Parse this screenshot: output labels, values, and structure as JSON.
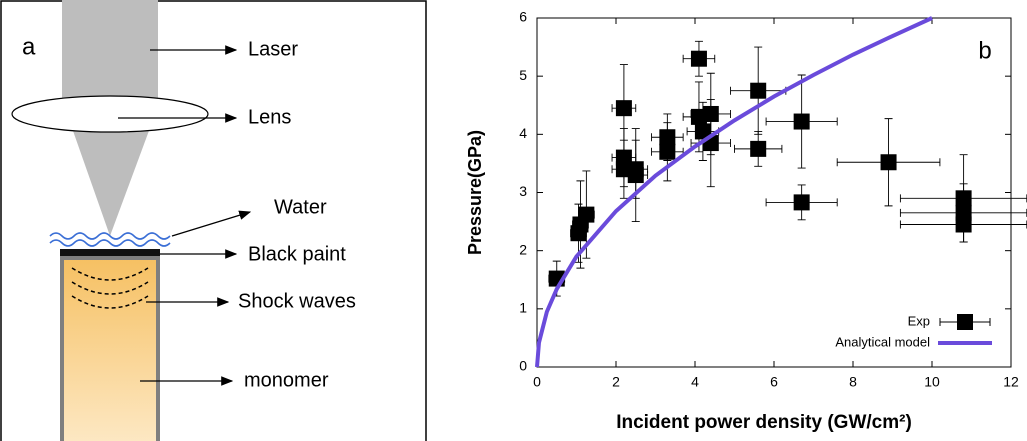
{
  "diagram": {
    "panel": "a",
    "labels": [
      "Laser",
      "Lens",
      "Water",
      "Black paint",
      "Shock waves",
      "monomer"
    ]
  },
  "chart_data": {
    "type": "scatter",
    "panel": "b",
    "xlabel": "Incident power density (GW/cm²)",
    "ylabel": "Pressure(GPa)",
    "xlim": [
      0,
      12
    ],
    "xticks": [
      0,
      2,
      4,
      6,
      8,
      10,
      12
    ],
    "ylim": [
      0,
      6
    ],
    "yticks": [
      0,
      1,
      2,
      3,
      4,
      5,
      6
    ],
    "legend": "lower right",
    "series": [
      {
        "name": "Exp",
        "color": "#000000",
        "x": [
          0.5,
          1.05,
          1.1,
          1.25,
          2.2,
          2.2,
          2.2,
          2.5,
          2.5,
          3.3,
          3.3,
          4.1,
          4.1,
          4.2,
          4.4,
          4.4,
          5.6,
          5.6,
          6.7,
          6.7,
          8.9,
          10.8,
          10.8,
          10.8
        ],
        "values": [
          1.52,
          2.3,
          2.45,
          2.62,
          4.45,
          3.6,
          3.4,
          3.3,
          3.4,
          3.95,
          3.7,
          5.3,
          4.3,
          4.05,
          4.35,
          3.85,
          4.75,
          3.75,
          4.22,
          2.83,
          3.52,
          2.9,
          2.65,
          2.45
        ],
        "xerr": [
          0.2,
          0.2,
          0.2,
          0.2,
          0.3,
          0.3,
          0.3,
          0.3,
          0.3,
          0.4,
          0.4,
          0.4,
          0.4,
          0.4,
          0.5,
          0.5,
          0.7,
          0.6,
          0.9,
          0.9,
          1.3,
          1.6,
          1.6,
          1.6
        ],
        "yerr": [
          0.3,
          0.5,
          0.75,
          0.75,
          0.75,
          0.5,
          0.5,
          0.8,
          0.5,
          0.4,
          0.5,
          0.3,
          0.6,
          0.5,
          0.7,
          0.75,
          0.75,
          0.3,
          0.8,
          0.3,
          0.75,
          0.75,
          0.5,
          0.3
        ]
      },
      {
        "name": "Analytical model",
        "color": "#6a4bdb",
        "type": "line",
        "x": [
          0,
          0.05,
          0.25,
          0.5,
          1,
          2,
          3,
          4,
          5,
          6,
          7,
          8,
          9,
          10
        ],
        "values": [
          0,
          0.42,
          0.95,
          1.34,
          1.9,
          2.68,
          3.29,
          3.79,
          4.24,
          4.65,
          5.02,
          5.37,
          5.69,
          6.0
        ]
      }
    ]
  }
}
